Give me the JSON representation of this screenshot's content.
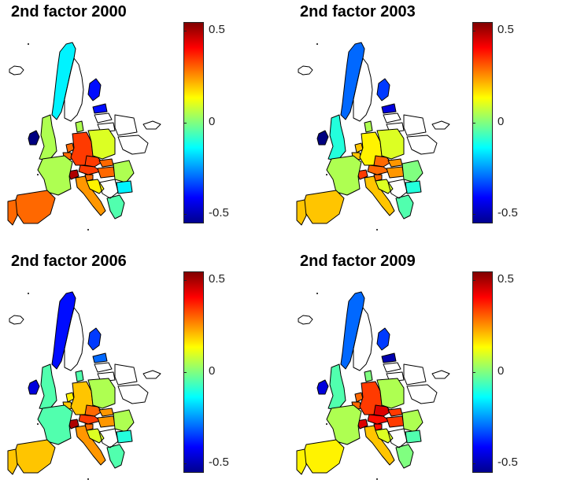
{
  "colors": {
    "background": "#ffffff",
    "outline": "#000000",
    "colormap": "jet"
  },
  "chart_data": [
    {
      "type": "heatmap",
      "title": "2nd factor 2000",
      "colorbar": {
        "range": [
          -0.55,
          0.55
        ],
        "ticks": [
          0.5,
          0,
          -0.5
        ],
        "tick_labels": [
          "0.5",
          "0",
          "-0.5"
        ]
      },
      "regions": [
        {
          "region": "Iceland",
          "value": null
        },
        {
          "region": "Norway",
          "value": -0.15
        },
        {
          "region": "Sweden",
          "value": null
        },
        {
          "region": "Finland",
          "value": -0.4
        },
        {
          "region": "Estonia",
          "value": -0.4
        },
        {
          "region": "Latvia",
          "value": null
        },
        {
          "region": "Lithuania",
          "value": null
        },
        {
          "region": "Ireland",
          "value": -0.55
        },
        {
          "region": "United Kingdom",
          "value": 0.05
        },
        {
          "region": "Denmark",
          "value": 0.05
        },
        {
          "region": "Netherlands",
          "value": 0.3
        },
        {
          "region": "Belgium",
          "value": 0.3
        },
        {
          "region": "Germany",
          "value": 0.35
        },
        {
          "region": "Poland",
          "value": 0.1
        },
        {
          "region": "Czech Republic",
          "value": 0.35
        },
        {
          "region": "Slovakia",
          "value": 0.3
        },
        {
          "region": "Austria",
          "value": 0.35
        },
        {
          "region": "Hungary",
          "value": 0.3
        },
        {
          "region": "Switzerland",
          "value": 0.5
        },
        {
          "region": "France",
          "value": 0.05
        },
        {
          "region": "Spain",
          "value": 0.3
        },
        {
          "region": "Portugal",
          "value": 0.3
        },
        {
          "region": "Italy",
          "value": 0.25
        },
        {
          "region": "Slovenia",
          "value": 0.3
        },
        {
          "region": "Croatia",
          "value": 0.15
        },
        {
          "region": "Romania",
          "value": 0.05
        },
        {
          "region": "Bulgaria",
          "value": -0.15
        },
        {
          "region": "Greece",
          "value": -0.05
        },
        {
          "region": "Balkans",
          "value": null
        },
        {
          "region": "Belarus",
          "value": null
        },
        {
          "region": "Ukraine",
          "value": null
        },
        {
          "region": "Cyprus",
          "value": null
        }
      ]
    },
    {
      "type": "heatmap",
      "title": "2nd factor 2003",
      "colorbar": {
        "range": [
          -0.55,
          0.55
        ],
        "ticks": [
          0.5,
          0,
          -0.5
        ],
        "tick_labels": [
          "0.5",
          "0",
          "-0.5"
        ]
      },
      "regions": [
        {
          "region": "Iceland",
          "value": null
        },
        {
          "region": "Norway",
          "value": -0.3
        },
        {
          "region": "Sweden",
          "value": null
        },
        {
          "region": "Finland",
          "value": -0.35
        },
        {
          "region": "Estonia",
          "value": -0.45
        },
        {
          "region": "Latvia",
          "value": null
        },
        {
          "region": "Lithuania",
          "value": null
        },
        {
          "region": "Ireland",
          "value": -0.55
        },
        {
          "region": "United Kingdom",
          "value": -0.1
        },
        {
          "region": "Denmark",
          "value": 0.05
        },
        {
          "region": "Netherlands",
          "value": 0.2
        },
        {
          "region": "Belgium",
          "value": 0.2
        },
        {
          "region": "Germany",
          "value": 0.15
        },
        {
          "region": "Poland",
          "value": 0.1
        },
        {
          "region": "Czech Republic",
          "value": 0.3
        },
        {
          "region": "Slovakia",
          "value": 0.25
        },
        {
          "region": "Austria",
          "value": 0.3
        },
        {
          "region": "Hungary",
          "value": 0.25
        },
        {
          "region": "Switzerland",
          "value": 0.35
        },
        {
          "region": "France",
          "value": 0.05
        },
        {
          "region": "Spain",
          "value": 0.2
        },
        {
          "region": "Portugal",
          "value": 0.2
        },
        {
          "region": "Italy",
          "value": 0.2
        },
        {
          "region": "Slovenia",
          "value": 0.3
        },
        {
          "region": "Croatia",
          "value": 0.1
        },
        {
          "region": "Romania",
          "value": 0
        },
        {
          "region": "Bulgaria",
          "value": -0.1
        },
        {
          "region": "Greece",
          "value": -0.05
        },
        {
          "region": "Balkans",
          "value": null
        },
        {
          "region": "Belarus",
          "value": null
        },
        {
          "region": "Ukraine",
          "value": null
        },
        {
          "region": "Cyprus",
          "value": null
        }
      ]
    },
    {
      "type": "heatmap",
      "title": "2nd factor 2006",
      "colorbar": {
        "range": [
          -0.55,
          0.55
        ],
        "ticks": [
          0.5,
          0,
          -0.5
        ],
        "tick_labels": [
          "0.5",
          "0",
          "-0.5"
        ]
      },
      "regions": [
        {
          "region": "Iceland",
          "value": null
        },
        {
          "region": "Norway",
          "value": -0.4
        },
        {
          "region": "Sweden",
          "value": null
        },
        {
          "region": "Finland",
          "value": -0.35
        },
        {
          "region": "Estonia",
          "value": -0.3
        },
        {
          "region": "Latvia",
          "value": null
        },
        {
          "region": "Lithuania",
          "value": null
        },
        {
          "region": "Ireland",
          "value": -0.45
        },
        {
          "region": "United Kingdom",
          "value": -0.05
        },
        {
          "region": "Denmark",
          "value": -0.05
        },
        {
          "region": "Netherlands",
          "value": 0.15
        },
        {
          "region": "Belgium",
          "value": 0.2
        },
        {
          "region": "Germany",
          "value": 0.2
        },
        {
          "region": "Poland",
          "value": 0.05
        },
        {
          "region": "Czech Republic",
          "value": 0.3
        },
        {
          "region": "Slovakia",
          "value": 0.25
        },
        {
          "region": "Austria",
          "value": 0.35
        },
        {
          "region": "Hungary",
          "value": 0.25
        },
        {
          "region": "Switzerland",
          "value": 0.5
        },
        {
          "region": "France",
          "value": -0.05
        },
        {
          "region": "Spain",
          "value": 0.2
        },
        {
          "region": "Portugal",
          "value": 0.2
        },
        {
          "region": "Italy",
          "value": 0.25
        },
        {
          "region": "Slovenia",
          "value": 0.3
        },
        {
          "region": "Croatia",
          "value": 0.1
        },
        {
          "region": "Romania",
          "value": 0.05
        },
        {
          "region": "Bulgaria",
          "value": -0.1
        },
        {
          "region": "Greece",
          "value": -0.05
        },
        {
          "region": "Balkans",
          "value": null
        },
        {
          "region": "Belarus",
          "value": null
        },
        {
          "region": "Ukraine",
          "value": null
        },
        {
          "region": "Cyprus",
          "value": null
        }
      ]
    },
    {
      "type": "heatmap",
      "title": "2nd factor 2009",
      "colorbar": {
        "range": [
          -0.55,
          0.55
        ],
        "ticks": [
          0.5,
          0,
          -0.5
        ],
        "tick_labels": [
          "0.5",
          "0",
          "-0.5"
        ]
      },
      "regions": [
        {
          "region": "Iceland",
          "value": null
        },
        {
          "region": "Norway",
          "value": -0.3
        },
        {
          "region": "Sweden",
          "value": null
        },
        {
          "region": "Finland",
          "value": -0.35
        },
        {
          "region": "Estonia",
          "value": -0.5
        },
        {
          "region": "Latvia",
          "value": null
        },
        {
          "region": "Lithuania",
          "value": null
        },
        {
          "region": "Ireland",
          "value": -0.45
        },
        {
          "region": "United Kingdom",
          "value": -0.05
        },
        {
          "region": "Denmark",
          "value": 0
        },
        {
          "region": "Netherlands",
          "value": 0.3
        },
        {
          "region": "Belgium",
          "value": 0.3
        },
        {
          "region": "Germany",
          "value": 0.35
        },
        {
          "region": "Poland",
          "value": 0.05
        },
        {
          "region": "Czech Republic",
          "value": 0.45
        },
        {
          "region": "Slovakia",
          "value": 0.35
        },
        {
          "region": "Austria",
          "value": 0.4
        },
        {
          "region": "Hungary",
          "value": 0.35
        },
        {
          "region": "Switzerland",
          "value": 0.45
        },
        {
          "region": "France",
          "value": 0.05
        },
        {
          "region": "Spain",
          "value": 0.15
        },
        {
          "region": "Portugal",
          "value": 0.15
        },
        {
          "region": "Italy",
          "value": 0.2
        },
        {
          "region": "Slovenia",
          "value": 0.4
        },
        {
          "region": "Croatia",
          "value": 0.1
        },
        {
          "region": "Romania",
          "value": 0.05
        },
        {
          "region": "Bulgaria",
          "value": -0.05
        },
        {
          "region": "Greece",
          "value": 0
        },
        {
          "region": "Balkans",
          "value": null
        },
        {
          "region": "Belarus",
          "value": null
        },
        {
          "region": "Ukraine",
          "value": null
        },
        {
          "region": "Cyprus",
          "value": null
        }
      ]
    }
  ]
}
